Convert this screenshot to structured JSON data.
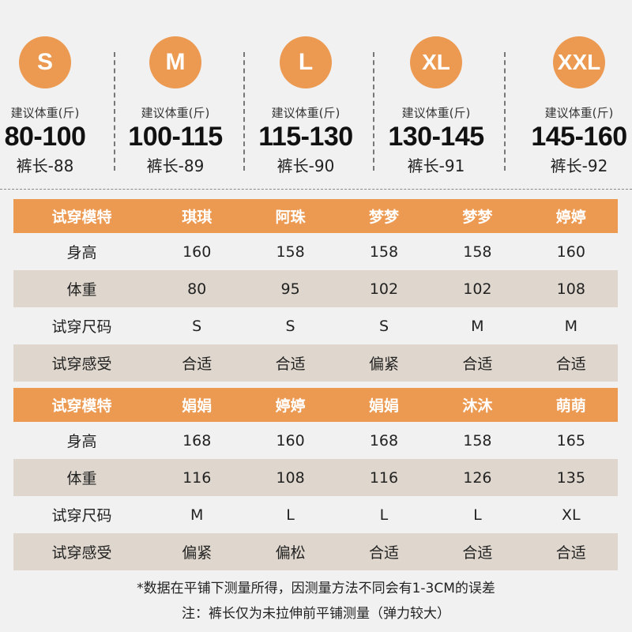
{
  "sizes": [
    {
      "size": "S",
      "weight_label": "建议体重(斤)",
      "weight_range": "80-100",
      "pant_length": "裤长-88"
    },
    {
      "size": "M",
      "weight_label": "建议体重(斤)",
      "weight_range": "100-115",
      "pant_length": "裤长-89"
    },
    {
      "size": "L",
      "weight_label": "建议体重(斤)",
      "weight_range": "115-130",
      "pant_length": "裤长-90"
    },
    {
      "size": "XL",
      "weight_label": "建议体重(斤)",
      "weight_range": "130-145",
      "pant_length": "裤长-91"
    },
    {
      "size": "XXL",
      "weight_label": "建议体重(斤)",
      "weight_range": "145-160",
      "pant_length": "裤长-92"
    }
  ],
  "tables": [
    {
      "header": [
        "试穿模特",
        "琪琪",
        "阿珠",
        "梦梦",
        "梦梦",
        "婷婷"
      ],
      "rows": [
        [
          "身高",
          "160",
          "158",
          "158",
          "158",
          "160"
        ],
        [
          "体重",
          "80",
          "95",
          "102",
          "102",
          "108"
        ],
        [
          "试穿尺码",
          "S",
          "S",
          "S",
          "M",
          "M"
        ],
        [
          "试穿感受",
          "合适",
          "合适",
          "偏紧",
          "合适",
          "合适"
        ]
      ]
    },
    {
      "header": [
        "试穿模特",
        "娟娟",
        "婷婷",
        "娟娟",
        "沐沐",
        "萌萌"
      ],
      "rows": [
        [
          "身高",
          "168",
          "160",
          "168",
          "158",
          "165"
        ],
        [
          "体重",
          "116",
          "108",
          "116",
          "126",
          "135"
        ],
        [
          "试穿尺码",
          "M",
          "L",
          "L",
          "L",
          "XL"
        ],
        [
          "试穿感受",
          "偏紧",
          "偏松",
          "合适",
          "合适",
          "合适"
        ]
      ]
    }
  ],
  "notes": [
    "*数据在平铺下测量所得，因测量方法不同会有1-3CM的误差",
    "注：裤长仅为未拉伸前平铺测量（弹力较大）"
  ],
  "colors": {
    "accent": "#ec9a52",
    "stripe": "#dfd7cd",
    "background": "#f1f1f1"
  }
}
